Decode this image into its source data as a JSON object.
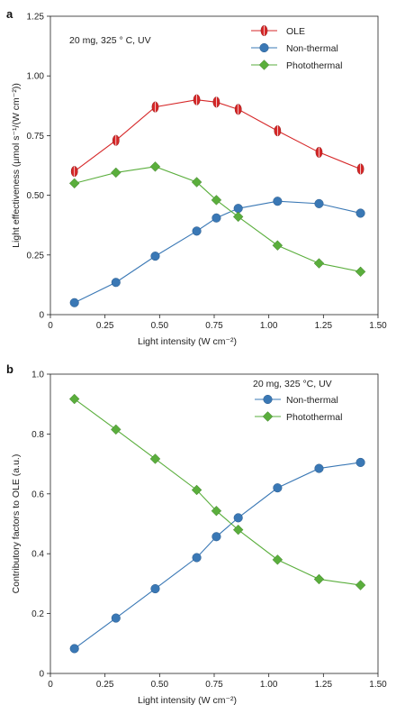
{
  "chart_data": [
    {
      "panel_label": "a",
      "type": "line",
      "annotation": "20 mg, 325 ° C, UV",
      "xlabel": "Light intensity (W cm⁻²)",
      "ylabel": "Light effectiveness (µmol s⁻¹/(W cm⁻²))",
      "xlim": [
        0,
        1.5
      ],
      "ylim": [
        0,
        1.25
      ],
      "xticks": [
        "0",
        "0.25",
        "0.50",
        "0.75",
        "1.00",
        "1.25",
        "1.50"
      ],
      "xtick_values": [
        0,
        0.25,
        0.5,
        0.75,
        1.0,
        1.25,
        1.5
      ],
      "yticks": [
        "0",
        "0.25",
        "0.50",
        "0.75",
        "1.00",
        "1.25"
      ],
      "ytick_values": [
        0,
        0.25,
        0.5,
        0.75,
        1.0,
        1.25
      ],
      "legend_position": "top-right",
      "series": [
        {
          "name": "OLE",
          "color": "#d62728",
          "marker": "ellipse",
          "x": [
            0.11,
            0.3,
            0.48,
            0.67,
            0.76,
            0.86,
            1.04,
            1.23,
            1.42
          ],
          "y": [
            0.6,
            0.73,
            0.87,
            0.9,
            0.89,
            0.86,
            0.77,
            0.68,
            0.61
          ]
        },
        {
          "name": "Non-thermal",
          "color": "#3a78b5",
          "marker": "circle",
          "x": [
            0.11,
            0.3,
            0.48,
            0.67,
            0.76,
            0.86,
            1.04,
            1.23,
            1.42
          ],
          "y": [
            0.05,
            0.135,
            0.245,
            0.35,
            0.405,
            0.445,
            0.475,
            0.465,
            0.425
          ]
        },
        {
          "name": "Photothermal",
          "color": "#5aae3c",
          "marker": "diamond",
          "x": [
            0.11,
            0.3,
            0.48,
            0.67,
            0.76,
            0.86,
            1.04,
            1.23,
            1.42
          ],
          "y": [
            0.55,
            0.595,
            0.62,
            0.555,
            0.48,
            0.41,
            0.29,
            0.215,
            0.18
          ]
        }
      ]
    },
    {
      "panel_label": "b",
      "type": "line",
      "annotation": "20 mg, 325 °C, UV",
      "xlabel": "Light intensity (W cm⁻²)",
      "ylabel": "Contributory factors to OLE (a.u.)",
      "xlim": [
        0,
        1.5
      ],
      "ylim": [
        0,
        1.0
      ],
      "xticks": [
        "0",
        "0.25",
        "0.50",
        "0.75",
        "1.00",
        "1.25",
        "1.50"
      ],
      "xtick_values": [
        0,
        0.25,
        0.5,
        0.75,
        1.0,
        1.25,
        1.5
      ],
      "yticks": [
        "0",
        "0.2",
        "0.4",
        "0.6",
        "0.8",
        "1.0"
      ],
      "ytick_values": [
        0,
        0.2,
        0.4,
        0.6,
        0.8,
        1.0
      ],
      "legend_position": "top-right",
      "series": [
        {
          "name": "Non-thermal",
          "color": "#3a78b5",
          "marker": "circle",
          "x": [
            0.11,
            0.3,
            0.48,
            0.67,
            0.76,
            0.86,
            1.04,
            1.23,
            1.42
          ],
          "y": [
            0.083,
            0.185,
            0.283,
            0.387,
            0.457,
            0.52,
            0.62,
            0.685,
            0.705
          ]
        },
        {
          "name": "Photothermal",
          "color": "#5aae3c",
          "marker": "diamond",
          "x": [
            0.11,
            0.3,
            0.48,
            0.67,
            0.76,
            0.86,
            1.04,
            1.23,
            1.42
          ],
          "y": [
            0.917,
            0.815,
            0.717,
            0.613,
            0.543,
            0.48,
            0.38,
            0.315,
            0.295
          ]
        }
      ]
    }
  ]
}
